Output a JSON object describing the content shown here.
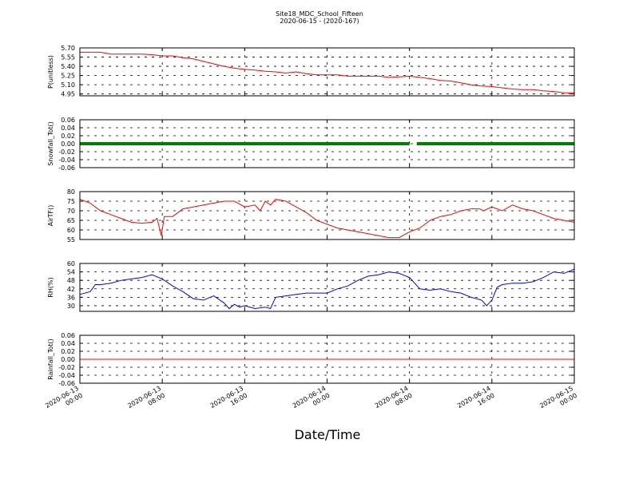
{
  "chart_data": [
    {
      "type": "line",
      "title": "Site18_MDC_School_Fifteen",
      "subtitle": "2020-06-15 - (2020-167)",
      "xlabel": "Date/Time",
      "x_ticks": [
        "2020-06-13|00:00",
        "2020-06-13|08:00",
        "2020-06-13|16:00",
        "2020-06-14|00:00",
        "2020-06-14|08:00",
        "2020-06-14|16:00",
        "2020-06-15|00:00"
      ],
      "xlim_hours": [
        0,
        48
      ],
      "grid": true,
      "panels": [
        {
          "ylabel": "P(unitless)",
          "ylim": [
            4.92,
            5.7
          ],
          "yticks": [
            "4.95",
            "5.10",
            "5.25",
            "5.40",
            "5.55",
            "5.70"
          ],
          "color": "#ff0000",
          "style": "line",
          "x": [
            0,
            1,
            2,
            3,
            4,
            5,
            6,
            7,
            8,
            9,
            10,
            11,
            12,
            13,
            14,
            15,
            16,
            17,
            18,
            19,
            20,
            21,
            22,
            23,
            24,
            25,
            26,
            27,
            28,
            29,
            30,
            31,
            32,
            33,
            34,
            35,
            36,
            37,
            38,
            39,
            40,
            41,
            42,
            43,
            44,
            45,
            46,
            47,
            48
          ],
          "values": [
            5.63,
            5.63,
            5.63,
            5.6,
            5.6,
            5.6,
            5.6,
            5.59,
            5.57,
            5.57,
            5.54,
            5.52,
            5.48,
            5.44,
            5.4,
            5.37,
            5.35,
            5.34,
            5.32,
            5.31,
            5.29,
            5.31,
            5.28,
            5.26,
            5.26,
            5.26,
            5.24,
            5.24,
            5.24,
            5.24,
            5.22,
            5.23,
            5.24,
            5.22,
            5.2,
            5.17,
            5.16,
            5.13,
            5.1,
            5.08,
            5.07,
            5.05,
            5.03,
            5.02,
            5.02,
            5.0,
            4.99,
            4.97,
            4.97
          ]
        },
        {
          "ylabel": "Snowfall_Tot()",
          "ylim": [
            -0.06,
            0.06
          ],
          "yticks": [
            "-0.06",
            "-0.04",
            "-0.02",
            "0.00",
            "0.02",
            "0.04",
            "0.06"
          ],
          "color": "#008000",
          "style": "markers",
          "segments": [
            [
              0,
              32
            ],
            [
              32.7,
              48
            ]
          ],
          "value": 0.0
        },
        {
          "ylabel": "AirTF()",
          "ylim": [
            55,
            80
          ],
          "yticks": [
            "55",
            "60",
            "65",
            "70",
            "75",
            "80"
          ],
          "color": "#ff0000",
          "style": "line",
          "x": [
            0,
            1,
            2,
            3,
            4,
            5,
            6,
            7,
            7.5,
            7.9,
            8.2,
            9,
            10,
            11,
            12,
            13,
            14,
            15,
            16,
            17,
            17.5,
            18,
            18.5,
            19,
            20,
            21,
            22,
            23,
            24,
            25,
            26,
            27,
            28,
            29,
            30,
            31,
            32,
            33,
            34,
            35,
            36,
            37,
            38,
            38.8,
            39.2,
            40,
            41,
            42,
            43,
            44,
            45,
            46,
            47,
            48
          ],
          "values": [
            76,
            74,
            70,
            68,
            66,
            64,
            63.5,
            64,
            66,
            57,
            67,
            67,
            71,
            72,
            73,
            74,
            75,
            75,
            72,
            73,
            70,
            75,
            73,
            76,
            75,
            72,
            69,
            65,
            63,
            61,
            60,
            59,
            58,
            57,
            56,
            56,
            59,
            61,
            65,
            67,
            68,
            70,
            71,
            71,
            70,
            72,
            70,
            73,
            71,
            70,
            68,
            66,
            65,
            64
          ]
        },
        {
          "ylabel": "RH(%)",
          "ylim": [
            26,
            60
          ],
          "yticks": [
            "30",
            "36",
            "42",
            "48",
            "54",
            "60"
          ],
          "color": "#0000ff",
          "style": "line",
          "x": [
            0,
            1,
            1.5,
            2,
            3,
            4,
            5,
            6,
            7,
            8,
            9,
            10,
            11,
            12,
            13,
            14,
            14.5,
            15,
            15.5,
            16,
            17,
            18,
            18.5,
            19,
            20,
            21,
            22,
            23,
            24,
            25,
            26,
            27,
            28,
            29,
            30,
            31,
            32,
            33,
            34,
            35,
            36,
            37,
            38,
            39,
            39.5,
            40,
            40.5,
            41,
            42,
            43,
            44,
            45,
            46,
            47,
            48
          ],
          "values": [
            38,
            40,
            45,
            45,
            46,
            48,
            49,
            50,
            52,
            49,
            44,
            40,
            35,
            34,
            37,
            32,
            28,
            31,
            29,
            30,
            28,
            29,
            28,
            36,
            37,
            38,
            39,
            39,
            39,
            42,
            44,
            48,
            51,
            52,
            54,
            53,
            50,
            42,
            41,
            42,
            40,
            39,
            36,
            34,
            30,
            34,
            43,
            45,
            46,
            46,
            47,
            50,
            54,
            53,
            56
          ]
        },
        {
          "ylabel": "Rainfall_Tot()",
          "ylim": [
            -0.06,
            0.06
          ],
          "yticks": [
            "-0.06",
            "-0.04",
            "-0.02",
            "0.00",
            "0.02",
            "0.04",
            "0.06"
          ],
          "color": "#ff0000",
          "style": "line",
          "x": [
            0,
            48
          ],
          "values": [
            0.0,
            0.0
          ]
        }
      ]
    }
  ]
}
